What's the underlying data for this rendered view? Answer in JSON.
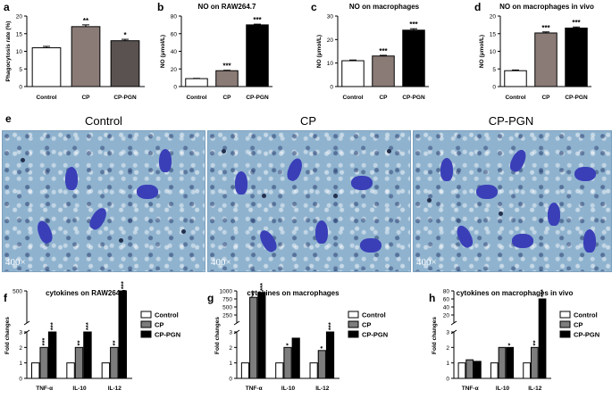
{
  "panel_e": {
    "letter": "e",
    "conditions": [
      "Control",
      "CP",
      "CP-PGN"
    ],
    "magnification": "400×"
  },
  "chart_data": [
    {
      "id": "a",
      "letter": "a",
      "type": "bar",
      "title": "",
      "categories": [
        "Control",
        "CP",
        "CP-PGN"
      ],
      "values": [
        11,
        17,
        13
      ],
      "errors": [
        0.4,
        0.5,
        0.4
      ],
      "significance": [
        "",
        "**",
        "*"
      ],
      "ylabel": "Phagocytosis rate (%)",
      "ylim": [
        0,
        20
      ],
      "yticks": [
        0,
        5,
        10,
        15,
        20
      ],
      "colors": [
        "#ffffff",
        "#8a7b77",
        "#5a5250"
      ]
    },
    {
      "id": "b",
      "letter": "b",
      "type": "bar",
      "title": "NO on RAW264.7",
      "categories": [
        "Control",
        "CP",
        "CP-PGN"
      ],
      "values": [
        9,
        18,
        70
      ],
      "errors": [
        0.3,
        0.5,
        0.8
      ],
      "significance": [
        "",
        "***",
        "***"
      ],
      "ylabel": "NO (μmol/L)",
      "ylim": [
        0,
        80
      ],
      "yticks": [
        0,
        20,
        40,
        60,
        80
      ],
      "colors": [
        "#ffffff",
        "#8a7b77",
        "#000000"
      ]
    },
    {
      "id": "c",
      "letter": "c",
      "type": "bar",
      "title": "NO on macrophages",
      "categories": [
        "Control",
        "CP",
        "CP-PGN"
      ],
      "values": [
        11,
        13,
        24
      ],
      "errors": [
        0.3,
        0.3,
        0.6
      ],
      "significance": [
        "",
        "***",
        "***"
      ],
      "ylabel": "NO (μmol/L)",
      "ylim": [
        0,
        30
      ],
      "yticks": [
        0,
        10,
        20,
        30
      ],
      "colors": [
        "#ffffff",
        "#8a7b77",
        "#000000"
      ]
    },
    {
      "id": "d",
      "letter": "d",
      "type": "bar",
      "title": "NO on macrophages in vivo",
      "categories": [
        "Control",
        "CP",
        "CP-PGN"
      ],
      "values": [
        4.5,
        15.2,
        16.6
      ],
      "errors": [
        0.2,
        0.3,
        0.3
      ],
      "significance": [
        "",
        "***",
        "***"
      ],
      "ylabel": "NO (μmol/L)",
      "ylim": [
        0,
        20
      ],
      "yticks": [
        0,
        5,
        10,
        15,
        20
      ],
      "colors": [
        "#ffffff",
        "#8a7b77",
        "#000000"
      ]
    },
    {
      "id": "f",
      "letter": "f",
      "type": "bar",
      "title": "cytokines on RAW264.7",
      "categories": [
        "TNF-α",
        "IL-10",
        "IL-12"
      ],
      "series": [
        {
          "name": "Control",
          "values": [
            1,
            1,
            1
          ],
          "significance": [
            "",
            "",
            ""
          ]
        },
        {
          "name": "CP",
          "values": [
            2,
            2,
            2
          ],
          "significance": [
            "***",
            "**",
            "**"
          ]
        },
        {
          "name": "CP-PGN",
          "values": [
            3,
            3,
            500
          ],
          "significance": [
            "***",
            "***",
            "***"
          ]
        }
      ],
      "ylabel": "Fold changes",
      "yscale": "broken",
      "yticks": [
        "0",
        "1",
        "2",
        "3",
        "500"
      ],
      "legend": "top-right"
    },
    {
      "id": "g",
      "letter": "g",
      "type": "bar",
      "title": "cytokines on macrophages",
      "categories": [
        "TNF-α",
        "IL-10",
        "IL-12"
      ],
      "series": [
        {
          "name": "Control",
          "values": [
            1,
            1,
            1
          ],
          "significance": [
            "",
            "",
            ""
          ]
        },
        {
          "name": "CP",
          "values": [
            800,
            2,
            1.8
          ],
          "significance": [
            "**",
            "*",
            "*"
          ]
        },
        {
          "name": "CP-PGN",
          "values": [
            950,
            2.6,
            3
          ],
          "significance": [
            "***",
            "",
            "***"
          ]
        }
      ],
      "ylabel": "Fold changes",
      "yscale": "broken",
      "yticks": [
        "0",
        "1",
        "2",
        "3",
        "250",
        "500",
        "750",
        "1000"
      ],
      "legend": "top-right"
    },
    {
      "id": "h",
      "letter": "h",
      "type": "bar",
      "title": "cytokines on macrophages in vivo",
      "categories": [
        "TNF-α",
        "IL-10",
        "IL-12"
      ],
      "series": [
        {
          "name": "Control",
          "values": [
            1,
            1,
            1
          ],
          "significance": [
            "",
            "",
            ""
          ]
        },
        {
          "name": "CP",
          "values": [
            1.2,
            2,
            2
          ],
          "significance": [
            "",
            "",
            "**"
          ]
        },
        {
          "name": "CP-PGN",
          "values": [
            1.1,
            2,
            60
          ],
          "significance": [
            "",
            "*",
            "***"
          ]
        }
      ],
      "ylabel": "Fold changes",
      "yscale": "broken",
      "yticks": [
        "0",
        "1",
        "2",
        "3",
        "20",
        "40",
        "60",
        "80"
      ],
      "legend": "top-right"
    }
  ],
  "series_colors": [
    "#ffffff",
    "#7d7d7d",
    "#000000"
  ]
}
